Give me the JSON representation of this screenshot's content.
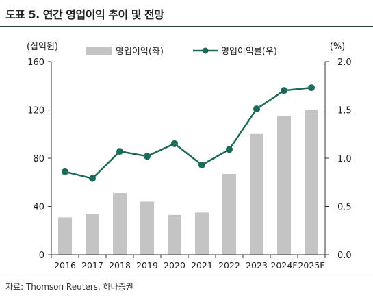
{
  "header": {
    "title": "도표 5. 연간 영업이익 추이 및 전망"
  },
  "footer": {
    "source": "자료: Thomson Reuters, 하나증권"
  },
  "colors": {
    "bar": "#c4c4c4",
    "line": "#1b6a5a",
    "axis": "#333333",
    "title_rule": "#1f3f3a"
  },
  "chart_data": {
    "type": "bar",
    "categories": [
      "2016",
      "2017",
      "2018",
      "2019",
      "2020",
      "2021",
      "2022",
      "2023",
      "2024F",
      "2025F"
    ],
    "series": [
      {
        "name": "영업이익(좌)",
        "type": "bar",
        "axis": "left",
        "values": [
          31,
          34,
          51,
          44,
          33,
          35,
          67,
          100,
          115,
          120
        ]
      },
      {
        "name": "영업이익률(우)",
        "type": "line",
        "axis": "right",
        "values": [
          0.86,
          0.79,
          1.07,
          1.02,
          1.15,
          0.93,
          1.09,
          1.51,
          1.7,
          1.73
        ]
      }
    ],
    "y_left": {
      "unit_label": "(십억원)",
      "range": [
        0,
        160
      ],
      "ticks": [
        0,
        40,
        80,
        120,
        160
      ]
    },
    "y_right": {
      "unit_label": "(%)",
      "range": [
        0,
        2.0
      ],
      "ticks": [
        "0.0",
        "0.5",
        "1.0",
        "1.5",
        "2.0"
      ]
    },
    "grid": false,
    "legend_position": "top"
  }
}
